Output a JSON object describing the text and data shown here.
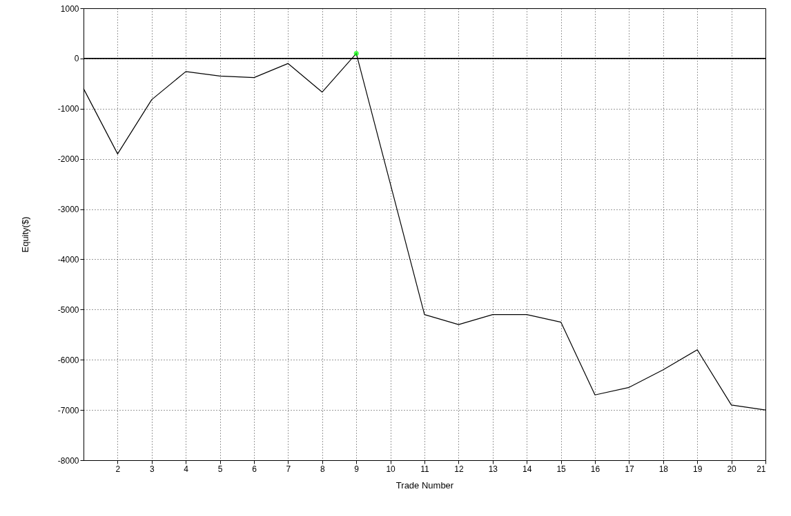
{
  "chart_data": {
    "type": "line",
    "xlabel": "Trade Number",
    "ylabel": "Equity($)",
    "x": [
      1,
      2,
      3,
      4,
      5,
      6,
      7,
      8,
      9,
      10,
      11,
      12,
      13,
      14,
      15,
      16,
      17,
      18,
      19,
      20,
      21
    ],
    "series": [
      {
        "color": "#000000",
        "values": [
          -600,
          -1900,
          -820,
          -260,
          -350,
          -380,
          -100,
          -670,
          100,
          -2500,
          -5100,
          -5300,
          -5100,
          -5100,
          -5250,
          -6700,
          -6550,
          -6200,
          -5800,
          -6900,
          -7000
        ]
      },
      {
        "type": "scatter",
        "color": "#00ff00",
        "x": [
          9
        ],
        "values": [
          100
        ]
      }
    ],
    "xlim": [
      1,
      21
    ],
    "xticks": [
      2,
      3,
      4,
      5,
      6,
      7,
      8,
      9,
      10,
      11,
      12,
      13,
      14,
      15,
      16,
      17,
      18,
      19,
      20,
      21
    ],
    "ylim": [
      -8000,
      1000
    ],
    "yticks": [
      -8000,
      -7000,
      -6000,
      -5000,
      -4000,
      -3000,
      -2000,
      -1000,
      0,
      1000
    ],
    "grid": true,
    "marker": "none",
    "line_style": "solid",
    "ref_lines": [
      {
        "axis": "y",
        "value": 0,
        "color": "#000000"
      }
    ]
  }
}
